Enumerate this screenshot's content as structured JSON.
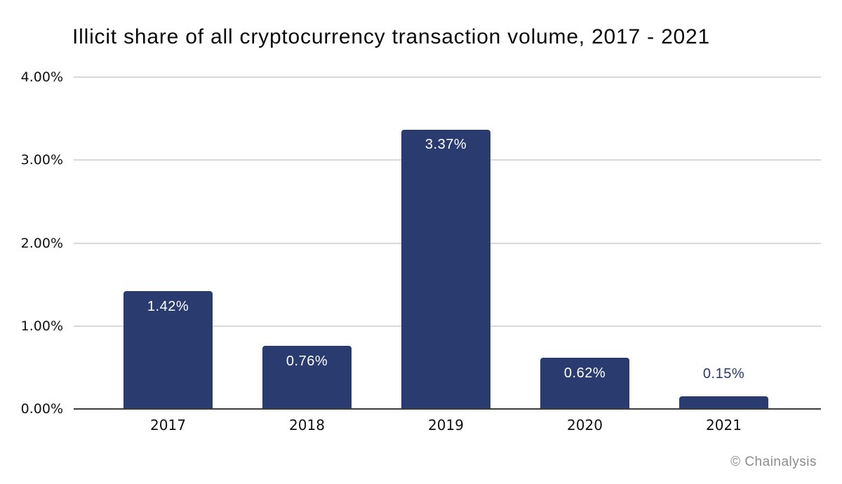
{
  "chart": {
    "title": "Illicit share of all cryptocurrency transaction volume, 2017 - 2021",
    "attribution": "© Chainalysis"
  },
  "colors": {
    "bg": "#FFFFFF",
    "bar": "#2A3B70",
    "bar_label_inside": "#FFFFFF",
    "bar_label_outside": "#2A3B70",
    "gridline": "#D9D9D9",
    "axis_line": "#3C3C3C",
    "title_text": "#0A0A0A",
    "tick_text": "#111111",
    "attribution_text": "#8C8C8C"
  },
  "chart_data": {
    "type": "bar",
    "title": "Illicit share of all cryptocurrency transaction volume, 2017 - 2021",
    "categories": [
      "2017",
      "2018",
      "2019",
      "2020",
      "2021"
    ],
    "values": [
      1.42,
      0.76,
      3.37,
      0.62,
      0.15
    ],
    "data_labels": [
      "1.42%",
      "0.76%",
      "3.37%",
      "0.62%",
      "0.15%"
    ],
    "data_label_placement": [
      "inside",
      "inside",
      "inside",
      "inside",
      "outside"
    ],
    "xlabel": "",
    "ylabel": "",
    "ylim": [
      0,
      4
    ],
    "ytick_values": [
      0,
      1,
      2,
      3,
      4
    ],
    "ytick_labels": [
      "0.00%",
      "1.00%",
      "2.00%",
      "3.00%",
      "4.00%"
    ],
    "grid": true,
    "legend": false,
    "bar_color": "#2A3B70"
  }
}
